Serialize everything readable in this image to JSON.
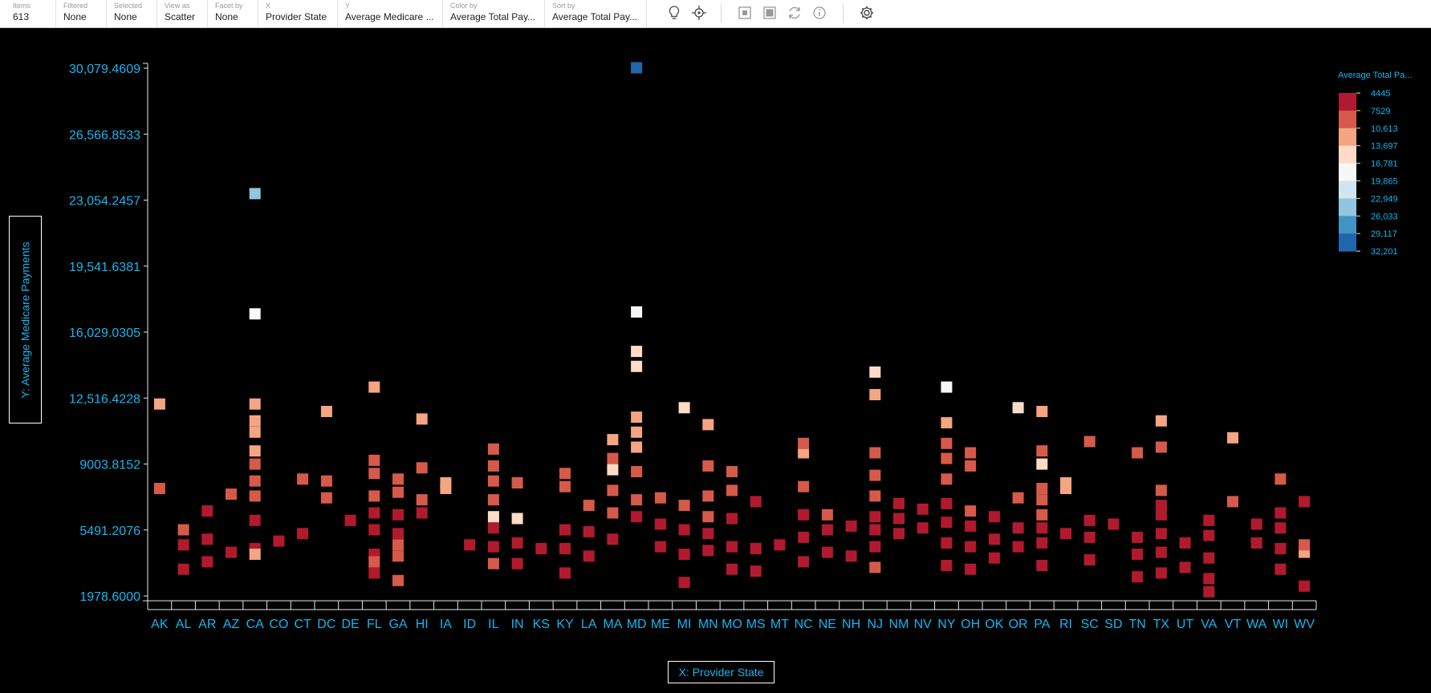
{
  "toolbar": {
    "items": [
      {
        "label": "Items",
        "value": "613"
      },
      {
        "label": "Filtered",
        "value": "None"
      },
      {
        "label": "Selected",
        "value": "None"
      },
      {
        "label": "View as",
        "value": "Scatter"
      },
      {
        "label": "Facet by",
        "value": "None"
      },
      {
        "label": "X",
        "value": "Provider State"
      },
      {
        "label": "Y",
        "value": "Average Medicare ..."
      },
      {
        "label": "Color by",
        "value": "Average Total Pay..."
      },
      {
        "label": "Sort by",
        "value": "Average Total Pay..."
      }
    ],
    "icons": [
      "lightbulb-icon",
      "target-icon",
      "select-icon",
      "select-all-icon",
      "refresh-icon",
      "info-icon",
      "settings-icon"
    ]
  },
  "axes": {
    "y_title": "Y: Average Medicare Payments",
    "x_title": "X: Provider State"
  },
  "colors": {
    "accent": "#14b6f0",
    "scale": [
      "#b11a2e",
      "#d65a4a",
      "#f4a582",
      "#fddbc7",
      "#f7f7f7",
      "#d1e5f0",
      "#92c5de",
      "#4393c3",
      "#2166ac"
    ]
  },
  "legend": {
    "title": "Average Total Pa...",
    "ticks": [
      "4445",
      "7529",
      "10,613",
      "13,697",
      "16,781",
      "19,865",
      "22,949",
      "26,033",
      "29,117",
      "32,201"
    ]
  },
  "chart_data": {
    "type": "scatter",
    "xlabel": "X: Provider State",
    "ylabel": "Y: Average Medicare Payments",
    "categories": [
      "AK",
      "AL",
      "AR",
      "AZ",
      "CA",
      "CO",
      "CT",
      "DC",
      "DE",
      "FL",
      "GA",
      "HI",
      "IA",
      "ID",
      "IL",
      "IN",
      "KS",
      "KY",
      "LA",
      "MA",
      "MD",
      "ME",
      "MI",
      "MN",
      "MO",
      "MS",
      "MT",
      "NC",
      "NE",
      "NH",
      "NJ",
      "NM",
      "NV",
      "NY",
      "OH",
      "OK",
      "OR",
      "PA",
      "RI",
      "SC",
      "SD",
      "TN",
      "TX",
      "UT",
      "VA",
      "VT",
      "WA",
      "WI",
      "WV"
    ],
    "y_ticks": [
      "1978.6000",
      "5491.2076",
      "9003.8152",
      "12,516.4228",
      "16,029.0305",
      "19,541.6381",
      "23,054.2457",
      "26,566.8533",
      "30,079.4609"
    ],
    "ylim": [
      1978.6,
      30079.4609
    ],
    "color_by": "Average Total Payments",
    "points": [
      [
        "AK",
        7700,
        1
      ],
      [
        "AK",
        12200,
        2
      ],
      [
        "AL",
        3400,
        0
      ],
      [
        "AL",
        4700,
        0
      ],
      [
        "AL",
        5500,
        1
      ],
      [
        "AR",
        3800,
        0
      ],
      [
        "AR",
        5000,
        0
      ],
      [
        "AR",
        6500,
        0
      ],
      [
        "AZ",
        4300,
        0
      ],
      [
        "AZ",
        7400,
        1
      ],
      [
        "CA",
        4500,
        0
      ],
      [
        "CA",
        6000,
        0
      ],
      [
        "CA",
        7300,
        1
      ],
      [
        "CA",
        8100,
        1
      ],
      [
        "CA",
        9000,
        1
      ],
      [
        "CA",
        9700,
        2
      ],
      [
        "CA",
        10700,
        2
      ],
      [
        "CA",
        11300,
        2
      ],
      [
        "CA",
        12200,
        2
      ],
      [
        "CA",
        4200,
        2
      ],
      [
        "CA",
        17000,
        4
      ],
      [
        "CA",
        23400,
        6
      ],
      [
        "CO",
        4900,
        0
      ],
      [
        "CT",
        5300,
        0
      ],
      [
        "CT",
        8200,
        1
      ],
      [
        "DC",
        7200,
        1
      ],
      [
        "DC",
        8100,
        1
      ],
      [
        "DC",
        11800,
        2
      ],
      [
        "DE",
        6000,
        0
      ],
      [
        "FL",
        3200,
        0
      ],
      [
        "FL",
        4200,
        0
      ],
      [
        "FL",
        5500,
        0
      ],
      [
        "FL",
        6400,
        0
      ],
      [
        "FL",
        3800,
        1
      ],
      [
        "FL",
        7300,
        1
      ],
      [
        "FL",
        8500,
        1
      ],
      [
        "FL",
        9200,
        1
      ],
      [
        "FL",
        13100,
        2
      ],
      [
        "GA",
        2800,
        1
      ],
      [
        "GA",
        4100,
        1
      ],
      [
        "GA",
        4700,
        1
      ],
      [
        "GA",
        5300,
        0
      ],
      [
        "GA",
        6300,
        0
      ],
      [
        "GA",
        7500,
        1
      ],
      [
        "GA",
        8200,
        1
      ],
      [
        "HI",
        6400,
        0
      ],
      [
        "HI",
        7100,
        1
      ],
      [
        "HI",
        8800,
        1
      ],
      [
        "HI",
        11400,
        2
      ],
      [
        "IA",
        7700,
        2
      ],
      [
        "IA",
        8000,
        2
      ],
      [
        "ID",
        4700,
        0
      ],
      [
        "IL",
        3700,
        1
      ],
      [
        "IL",
        4600,
        0
      ],
      [
        "IL",
        5600,
        0
      ],
      [
        "IL",
        6200,
        3
      ],
      [
        "IL",
        7100,
        1
      ],
      [
        "IL",
        8100,
        1
      ],
      [
        "IL",
        8900,
        1
      ],
      [
        "IL",
        9800,
        1
      ],
      [
        "IN",
        3700,
        0
      ],
      [
        "IN",
        4800,
        0
      ],
      [
        "IN",
        6100,
        3
      ],
      [
        "IN",
        8000,
        1
      ],
      [
        "KS",
        4500,
        0
      ],
      [
        "KY",
        3200,
        0
      ],
      [
        "KY",
        4500,
        0
      ],
      [
        "KY",
        5500,
        0
      ],
      [
        "KY",
        7800,
        1
      ],
      [
        "KY",
        8500,
        1
      ],
      [
        "LA",
        4100,
        0
      ],
      [
        "LA",
        5400,
        0
      ],
      [
        "LA",
        6800,
        1
      ],
      [
        "MA",
        5000,
        0
      ],
      [
        "MA",
        6400,
        1
      ],
      [
        "MA",
        7600,
        1
      ],
      [
        "MA",
        8700,
        3
      ],
      [
        "MA",
        9300,
        1
      ],
      [
        "MA",
        10300,
        2
      ],
      [
        "MD",
        6200,
        0
      ],
      [
        "MD",
        7100,
        1
      ],
      [
        "MD",
        8600,
        1
      ],
      [
        "MD",
        9900,
        2
      ],
      [
        "MD",
        10700,
        2
      ],
      [
        "MD",
        11500,
        2
      ],
      [
        "MD",
        14200,
        3
      ],
      [
        "MD",
        15000,
        3
      ],
      [
        "MD",
        17100,
        4
      ],
      [
        "MD",
        30100,
        8
      ],
      [
        "ME",
        4600,
        0
      ],
      [
        "ME",
        5800,
        0
      ],
      [
        "ME",
        7200,
        1
      ],
      [
        "MI",
        2700,
        0
      ],
      [
        "MI",
        4200,
        0
      ],
      [
        "MI",
        5500,
        0
      ],
      [
        "MI",
        6800,
        1
      ],
      [
        "MI",
        12000,
        3
      ],
      [
        "MN",
        4400,
        0
      ],
      [
        "MN",
        5300,
        0
      ],
      [
        "MN",
        6200,
        1
      ],
      [
        "MN",
        7300,
        1
      ],
      [
        "MN",
        8900,
        1
      ],
      [
        "MN",
        11100,
        2
      ],
      [
        "MO",
        3400,
        0
      ],
      [
        "MO",
        4600,
        0
      ],
      [
        "MO",
        6100,
        0
      ],
      [
        "MO",
        7600,
        1
      ],
      [
        "MO",
        8600,
        1
      ],
      [
        "MS",
        3300,
        0
      ],
      [
        "MS",
        4500,
        0
      ],
      [
        "MS",
        7000,
        0
      ],
      [
        "MT",
        4700,
        0
      ],
      [
        "NC",
        3800,
        0
      ],
      [
        "NC",
        5100,
        0
      ],
      [
        "NC",
        6300,
        0
      ],
      [
        "NC",
        7800,
        1
      ],
      [
        "NC",
        9600,
        2
      ],
      [
        "NC",
        10100,
        1
      ],
      [
        "NE",
        4300,
        0
      ],
      [
        "NE",
        5500,
        0
      ],
      [
        "NE",
        6300,
        1
      ],
      [
        "NH",
        4100,
        0
      ],
      [
        "NH",
        5700,
        0
      ],
      [
        "NJ",
        3500,
        1
      ],
      [
        "NJ",
        4600,
        0
      ],
      [
        "NJ",
        5500,
        0
      ],
      [
        "NJ",
        6200,
        0
      ],
      [
        "NJ",
        7300,
        1
      ],
      [
        "NJ",
        8400,
        1
      ],
      [
        "NJ",
        9600,
        1
      ],
      [
        "NJ",
        12700,
        2
      ],
      [
        "NJ",
        13900,
        3
      ],
      [
        "NM",
        5300,
        0
      ],
      [
        "NM",
        6100,
        0
      ],
      [
        "NM",
        6900,
        0
      ],
      [
        "NV",
        5600,
        0
      ],
      [
        "NV",
        6600,
        0
      ],
      [
        "NY",
        3600,
        0
      ],
      [
        "NY",
        4800,
        0
      ],
      [
        "NY",
        5900,
        0
      ],
      [
        "NY",
        6900,
        0
      ],
      [
        "NY",
        8200,
        1
      ],
      [
        "NY",
        9300,
        1
      ],
      [
        "NY",
        10100,
        1
      ],
      [
        "NY",
        11200,
        2
      ],
      [
        "NY",
        13100,
        4
      ],
      [
        "OH",
        3400,
        0
      ],
      [
        "OH",
        4600,
        0
      ],
      [
        "OH",
        5700,
        0
      ],
      [
        "OH",
        6500,
        1
      ],
      [
        "OH",
        8900,
        1
      ],
      [
        "OH",
        9600,
        1
      ],
      [
        "OK",
        4000,
        0
      ],
      [
        "OK",
        5000,
        0
      ],
      [
        "OK",
        6200,
        0
      ],
      [
        "OR",
        4600,
        0
      ],
      [
        "OR",
        5600,
        0
      ],
      [
        "OR",
        7200,
        1
      ],
      [
        "OR",
        12000,
        3
      ],
      [
        "PA",
        3600,
        0
      ],
      [
        "PA",
        4800,
        0
      ],
      [
        "PA",
        5600,
        0
      ],
      [
        "PA",
        6300,
        1
      ],
      [
        "PA",
        7100,
        1
      ],
      [
        "PA",
        7700,
        1
      ],
      [
        "PA",
        9000,
        3
      ],
      [
        "PA",
        9700,
        1
      ],
      [
        "PA",
        11800,
        2
      ],
      [
        "RI",
        5300,
        0
      ],
      [
        "RI",
        7700,
        2
      ],
      [
        "RI",
        8000,
        2
      ],
      [
        "SC",
        3900,
        0
      ],
      [
        "SC",
        5100,
        0
      ],
      [
        "SC",
        6000,
        0
      ],
      [
        "SC",
        10200,
        1
      ],
      [
        "SD",
        5800,
        0
      ],
      [
        "TN",
        3000,
        0
      ],
      [
        "TN",
        4200,
        0
      ],
      [
        "TN",
        5100,
        0
      ],
      [
        "TN",
        9600,
        1
      ],
      [
        "TX",
        3200,
        0
      ],
      [
        "TX",
        4300,
        0
      ],
      [
        "TX",
        5300,
        0
      ],
      [
        "TX",
        6300,
        0
      ],
      [
        "TX",
        6800,
        0
      ],
      [
        "TX",
        7600,
        1
      ],
      [
        "TX",
        9900,
        1
      ],
      [
        "TX",
        11300,
        2
      ],
      [
        "UT",
        3500,
        0
      ],
      [
        "UT",
        4800,
        0
      ],
      [
        "VA",
        2200,
        0
      ],
      [
        "VA",
        2900,
        0
      ],
      [
        "VA",
        4000,
        0
      ],
      [
        "VA",
        5200,
        0
      ],
      [
        "VA",
        6000,
        0
      ],
      [
        "VT",
        7000,
        1
      ],
      [
        "VT",
        10400,
        2
      ],
      [
        "WA",
        4800,
        0
      ],
      [
        "WA",
        5800,
        0
      ],
      [
        "WI",
        3400,
        0
      ],
      [
        "WI",
        4500,
        0
      ],
      [
        "WI",
        5600,
        0
      ],
      [
        "WI",
        6400,
        0
      ],
      [
        "WI",
        8200,
        1
      ],
      [
        "WV",
        2500,
        0
      ],
      [
        "WV",
        4300,
        2
      ],
      [
        "WV",
        4700,
        1
      ],
      [
        "WV",
        7000,
        0
      ]
    ]
  }
}
